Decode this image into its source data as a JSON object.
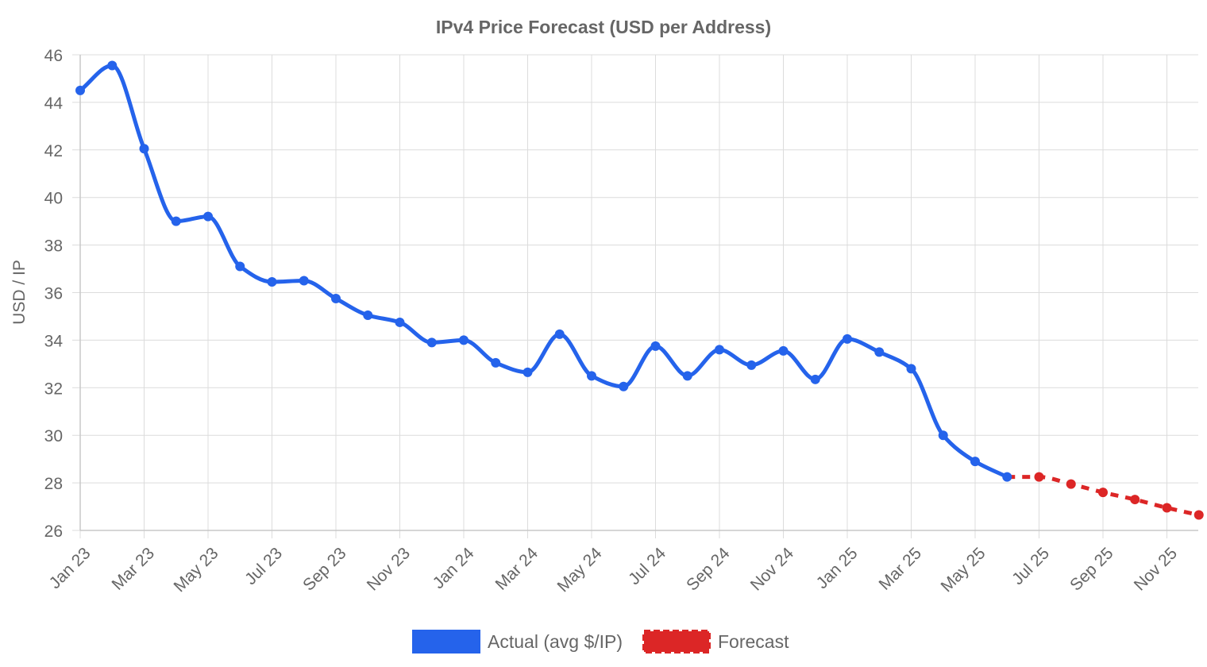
{
  "chart_data": {
    "type": "line",
    "title": "IPv4 Price Forecast (USD per Address)",
    "xlabel": "",
    "ylabel": "USD / IP",
    "ylim": [
      26,
      46
    ],
    "yticks": [
      26,
      28,
      30,
      32,
      34,
      36,
      38,
      40,
      42,
      44,
      46
    ],
    "x_tick_labels": [
      "Jan 23",
      "Mar 23",
      "May 23",
      "Jul 23",
      "Sep 23",
      "Nov 23",
      "Jan 24",
      "Mar 24",
      "May 24",
      "Jul 24",
      "Sep 24",
      "Nov 24",
      "Jan 25",
      "Mar 25",
      "May 25",
      "Jul 25",
      "Sep 25",
      "Nov 25"
    ],
    "grid": true,
    "legend_position": "bottom",
    "series": [
      {
        "name": "Actual (avg $/IP)",
        "color": "#2563eb",
        "style": "solid",
        "x": [
          "Jan 23",
          "Feb 23",
          "Mar 23",
          "Apr 23",
          "May 23",
          "Jun 23",
          "Jul 23",
          "Aug 23",
          "Sep 23",
          "Oct 23",
          "Nov 23",
          "Dec 23",
          "Jan 24",
          "Feb 24",
          "Mar 24",
          "Apr 24",
          "May 24",
          "Jun 24",
          "Jul 24",
          "Aug 24",
          "Sep 24",
          "Oct 24",
          "Nov 24",
          "Dec 24",
          "Jan 25",
          "Feb 25",
          "Mar 25",
          "Apr 25",
          "May 25",
          "Jun 25"
        ],
        "values": [
          44.5,
          45.55,
          42.05,
          39.0,
          39.2,
          37.1,
          36.45,
          36.5,
          35.75,
          35.05,
          34.75,
          33.9,
          34.0,
          33.05,
          32.65,
          34.25,
          32.5,
          32.05,
          33.75,
          32.5,
          33.6,
          32.95,
          33.55,
          32.35,
          34.05,
          33.5,
          32.8,
          30.0,
          28.9,
          28.25
        ]
      },
      {
        "name": "Forecast",
        "color": "#dc2626",
        "style": "dashed",
        "x": [
          "Jun 25",
          "Jul 25",
          "Aug 25",
          "Sep 25",
          "Oct 25",
          "Nov 25",
          "Dec 25"
        ],
        "values": [
          28.25,
          28.25,
          27.95,
          27.6,
          27.3,
          26.95,
          26.65
        ]
      }
    ]
  }
}
